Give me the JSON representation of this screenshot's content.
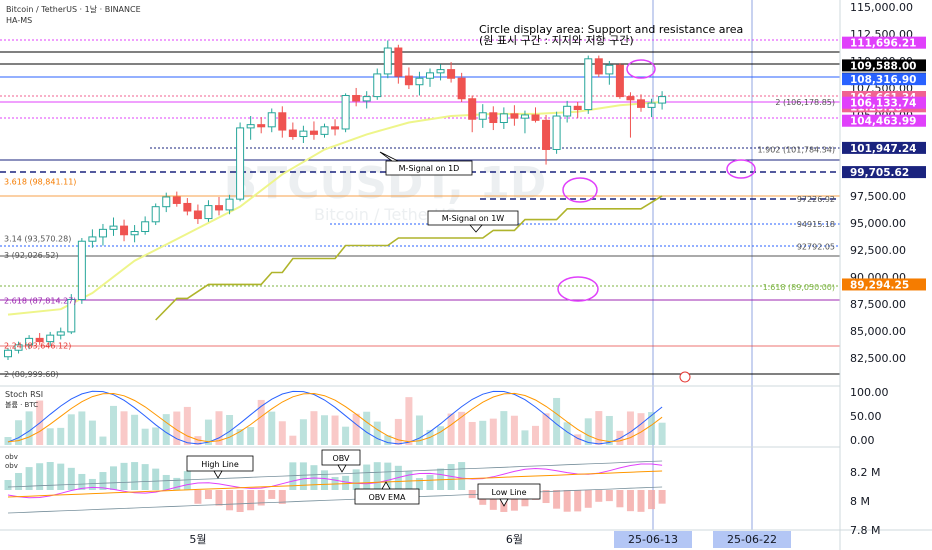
{
  "header": {
    "title": "Bitcoin / TetherUS · 1날 · BINANCE",
    "indicator": "HA-MS",
    "stoch_label": "Stoch RSI",
    "volume_label": "볼륨 · BTC",
    "obv_label1": "obv",
    "obv_label2": "obv"
  },
  "annotation": {
    "line1": "Circle display area: Support and resistance area",
    "line2": "(원 표시 구간 : 지지와 저항 구간)"
  },
  "watermark": {
    "big": "BTCUSDT, 1D",
    "small": "Bitcoin / TetherUS"
  },
  "callouts": {
    "msignal_1d": "M-Signal on 1D",
    "msignal_1w": "M-Signal on 1W",
    "high_line": "High Line",
    "obv": "OBV",
    "obv_ema": "OBV EMA",
    "low_line": "Low Line"
  },
  "chart_data": {
    "type": "candlestick",
    "symbol": "BTCUSDT",
    "price_axis": {
      "ylim": [
        80000,
        115000
      ],
      "ticks": [
        "115,000.00",
        "112,500.00",
        "110,000.00",
        "107,500.00",
        "105,000.00",
        "97,500.00",
        "95,000.00",
        "92,500.00",
        "90,000.00",
        "87,500.00",
        "85,000.00",
        "82,500.00"
      ],
      "tick_values": [
        115000,
        112500,
        110000,
        107500,
        105000,
        97500,
        95000,
        92500,
        90000,
        87500,
        85000,
        82500
      ]
    },
    "price_badges": [
      {
        "text": "111,696.21",
        "value": 111696.21,
        "color": "#e040fb",
        "dark": false
      },
      {
        "text": "109,588.00",
        "value": 109588,
        "color": "#000000",
        "dark": true
      },
      {
        "text": "108,353.00",
        "value": 108353,
        "color": "#000000",
        "dark": true
      },
      {
        "text": "108,316.90",
        "value": 108316.9,
        "color": "#2962ff",
        "dark": true
      },
      {
        "text": "106,661.34",
        "value": 106661.34,
        "color": "#f06292",
        "dark": true
      },
      {
        "text": "11:28:18",
        "value": 105800,
        "color": "#f06292",
        "dark": true
      },
      {
        "text": "106,133.74",
        "value": 106133.74,
        "color": "#e040fb",
        "dark": true
      },
      {
        "text": "104,463.99",
        "value": 104463.99,
        "color": "#e040fb",
        "dark": true
      },
      {
        "text": "101,947.24",
        "value": 101947.24,
        "color": "#1a237e",
        "dark": true
      },
      {
        "text": "99,705.62",
        "value": 99705.62,
        "color": "#1a237e",
        "dark": true
      },
      {
        "text": "89,294.25",
        "value": 89294.25,
        "color": "#f57c00",
        "dark": true
      }
    ],
    "level_labels": [
      {
        "text": "2 (106,178.85)",
        "value": 106178.85,
        "color": "#555555"
      },
      {
        "text": "1.902 (101,784.34)",
        "value": 101784.34,
        "color": "#555555"
      },
      {
        "text": "3.618 (98,841.11)",
        "value": 98841.11,
        "color": "#f57c00"
      },
      {
        "text": "97226.92",
        "value": 97226.92,
        "color": "#555555"
      },
      {
        "text": "94915.18",
        "value": 94915.18,
        "color": "#555555"
      },
      {
        "text": "3.14 (93,570.28)",
        "value": 93570.28,
        "color": "#555555"
      },
      {
        "text": "92792.05",
        "value": 92792.05,
        "color": "#555555"
      },
      {
        "text": "3 (92,026.52)",
        "value": 92026.52,
        "color": "#555555"
      },
      {
        "text": "1.618 (89,050.00)",
        "value": 89050,
        "color": "#7cb342"
      },
      {
        "text": "2.618 (87,814.27)",
        "value": 87814.27,
        "color": "#9c27b0"
      },
      {
        "text": "2.24 (83,646.12)",
        "value": 83646.12,
        "color": "#e53935"
      },
      {
        "text": "2 (80,999.68)",
        "value": 80999.68,
        "color": "#555555"
      }
    ],
    "x_labels": [
      {
        "text": "5월",
        "index": 18,
        "highlight": false
      },
      {
        "text": "6월",
        "index": 48,
        "highlight": false
      },
      {
        "text": "25-06-13",
        "index": 59,
        "highlight": true
      },
      {
        "text": "25-06-22",
        "index": 68,
        "highlight": true
      }
    ],
    "candles": [
      [
        82600,
        83400,
        82300,
        83200
      ],
      [
        83200,
        84000,
        82900,
        83700
      ],
      [
        83700,
        84600,
        83300,
        84300
      ],
      [
        84300,
        84800,
        83700,
        84000
      ],
      [
        84000,
        84900,
        83600,
        84600
      ],
      [
        84600,
        85300,
        84200,
        84900
      ],
      [
        84900,
        88400,
        84700,
        87900
      ],
      [
        87900,
        93600,
        87500,
        93300
      ],
      [
        93300,
        94400,
        92700,
        93700
      ],
      [
        93700,
        94900,
        92900,
        94400
      ],
      [
        94400,
        95500,
        93800,
        94700
      ],
      [
        94700,
        95300,
        93300,
        93900
      ],
      [
        93900,
        94800,
        93200,
        94200
      ],
      [
        94200,
        95600,
        93900,
        95100
      ],
      [
        95100,
        96800,
        94800,
        96500
      ],
      [
        96500,
        97800,
        96000,
        97400
      ],
      [
        97400,
        97900,
        96500,
        96800
      ],
      [
        96800,
        97300,
        95700,
        96100
      ],
      [
        96100,
        96700,
        94900,
        95400
      ],
      [
        95400,
        97100,
        95100,
        96600
      ],
      [
        96600,
        97400,
        95700,
        96200
      ],
      [
        96200,
        97600,
        95800,
        97200
      ],
      [
        97200,
        104300,
        97000,
        103800
      ],
      [
        103800,
        104900,
        102700,
        104100
      ],
      [
        104100,
        104800,
        103300,
        103900
      ],
      [
        103900,
        105600,
        103400,
        105200
      ],
      [
        105200,
        105800,
        102900,
        103600
      ],
      [
        103600,
        104300,
        102700,
        103000
      ],
      [
        103000,
        104000,
        102400,
        103500
      ],
      [
        103500,
        104400,
        102700,
        103200
      ],
      [
        103200,
        104200,
        102900,
        103900
      ],
      [
        103900,
        104600,
        103100,
        103700
      ],
      [
        103700,
        107000,
        103400,
        106800
      ],
      [
        106800,
        107500,
        105800,
        106300
      ],
      [
        106300,
        107200,
        105600,
        106700
      ],
      [
        106700,
        109300,
        106400,
        108800
      ],
      [
        108800,
        111900,
        108400,
        111200
      ],
      [
        111200,
        111500,
        107900,
        108600
      ],
      [
        108600,
        109400,
        107400,
        107800
      ],
      [
        107800,
        109000,
        106800,
        108400
      ],
      [
        108400,
        109300,
        107600,
        108900
      ],
      [
        108900,
        109700,
        108200,
        109200
      ],
      [
        109200,
        109900,
        108000,
        108400
      ],
      [
        108400,
        108900,
        106200,
        106500
      ],
      [
        106500,
        106800,
        103400,
        104600
      ],
      [
        104600,
        106000,
        103800,
        105200
      ],
      [
        105200,
        105800,
        103600,
        104300
      ],
      [
        104300,
        105700,
        103700,
        105100
      ],
      [
        105100,
        105900,
        104000,
        104700
      ],
      [
        104700,
        105400,
        103300,
        105000
      ],
      [
        105000,
        105700,
        104300,
        104500
      ],
      [
        104500,
        105000,
        100400,
        101800
      ],
      [
        101800,
        105300,
        101400,
        104900
      ],
      [
        104900,
        106300,
        104300,
        105800
      ],
      [
        105800,
        106200,
        104700,
        105500
      ],
      [
        105500,
        110500,
        105100,
        110200
      ],
      [
        110200,
        110500,
        108500,
        108800
      ],
      [
        108800,
        110000,
        107800,
        109600
      ],
      [
        109600,
        109800,
        106500,
        106700
      ],
      [
        106700,
        107100,
        102900,
        106400
      ],
      [
        106400,
        106900,
        105300,
        105700
      ],
      [
        105700,
        106500,
        104800,
        106100
      ],
      [
        106100,
        107200,
        105500,
        106700
      ]
    ],
    "msignal_1d": [
      [
        0,
        86500
      ],
      [
        5,
        87000
      ],
      [
        8,
        88500
      ],
      [
        12,
        91500
      ],
      [
        16,
        93500
      ],
      [
        22,
        96500
      ],
      [
        26,
        99500
      ],
      [
        30,
        101800
      ],
      [
        34,
        103200
      ],
      [
        38,
        104300
      ],
      [
        42,
        104900
      ],
      [
        46,
        105100
      ],
      [
        50,
        105100
      ],
      [
        54,
        105300
      ],
      [
        58,
        105900
      ],
      [
        62,
        106200
      ]
    ],
    "msignal_1w": [
      [
        14,
        86000
      ],
      [
        16,
        88000
      ],
      [
        17,
        88000
      ],
      [
        19,
        89300
      ],
      [
        24,
        89300
      ],
      [
        25,
        90400
      ],
      [
        26,
        90400
      ],
      [
        27,
        91700
      ],
      [
        31,
        91700
      ],
      [
        32,
        92900
      ],
      [
        36,
        92900
      ],
      [
        37,
        93600
      ],
      [
        45,
        93600
      ],
      [
        46,
        94300
      ],
      [
        48,
        94300
      ],
      [
        49,
        95300
      ],
      [
        52,
        95300
      ],
      [
        53,
        96300
      ],
      [
        58,
        96300
      ],
      [
        60,
        96300
      ],
      [
        62,
        97500
      ]
    ],
    "indicator_axis": {
      "stoch_ticks": [
        "100.00",
        "50.00",
        "0.00"
      ],
      "obv_ticks": [
        "8.2 M",
        "8 M",
        "7.8 M"
      ]
    }
  }
}
